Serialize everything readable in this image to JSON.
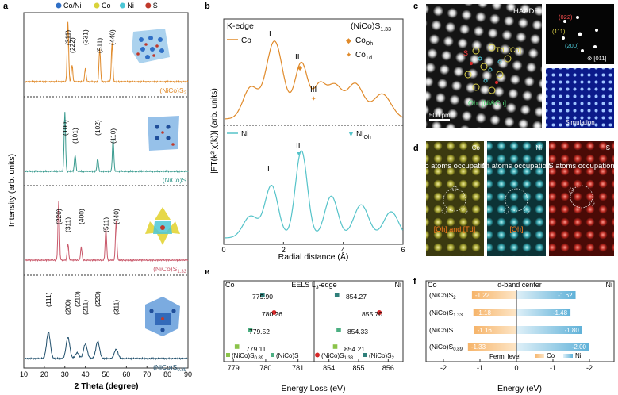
{
  "panel_labels": {
    "a": "a",
    "b": "b",
    "c": "c",
    "d": "d",
    "e": "e",
    "f": "f"
  },
  "colors": {
    "orange": "#e08a2a",
    "teal": "#3a9b8f",
    "pink": "#c9596b",
    "navy": "#1f4e6b",
    "cyan": "#55c3c9",
    "eels_dark": "#2f7f7a",
    "eels_light": "#8bc34a",
    "eels_mid": "#4caf82",
    "red_dot": "#d62828",
    "bar_orange": "#f2a65a",
    "bar_blue": "#6cb7d9",
    "label_yellow": "#e0d64a"
  },
  "legend_a": {
    "items": [
      {
        "label": "Co/Ni",
        "color": "#2f6fc6"
      },
      {
        "label": "Co",
        "color": "#d8d23a"
      },
      {
        "label": "Ni",
        "color": "#4cc7d6"
      },
      {
        "label": "S",
        "color": "#c0392b"
      }
    ]
  },
  "panel_a": {
    "xlabel": "2 Theta (degree)",
    "ylabel": "Intensity (arb. units)",
    "x_ticks": [
      "10",
      "20",
      "30",
      "40",
      "50",
      "60",
      "70",
      "80",
      "90"
    ],
    "subplots": [
      {
        "name": "(NiCo)S2",
        "label": "(NiCo)S",
        "sub": "2",
        "color": "#e08a2a",
        "peaks": [
          {
            "theta": 31.5,
            "label": "(311)"
          },
          {
            "theta": 33.5,
            "label": "(222)"
          },
          {
            "theta": 40.0,
            "label": "(331)"
          },
          {
            "theta": 47.0,
            "label": "(511)"
          },
          {
            "theta": 53.0,
            "label": "(440)"
          }
        ]
      },
      {
        "name": "(NiCo)S",
        "label": "(NiCo)S",
        "sub": "",
        "color": "#3a9b8f",
        "peaks": [
          {
            "theta": 30.0,
            "label": "(100)"
          },
          {
            "theta": 35.0,
            "label": "(101)"
          },
          {
            "theta": 46.0,
            "label": "(102)"
          },
          {
            "theta": 53.5,
            "label": "(110)"
          }
        ]
      },
      {
        "name": "(NiCo)S1.33",
        "label": "(NiCo)S",
        "sub": "1.33",
        "color": "#c9596b",
        "peaks": [
          {
            "theta": 27.0,
            "label": "(220)"
          },
          {
            "theta": 31.5,
            "label": "(311)"
          },
          {
            "theta": 38.0,
            "label": "(400)"
          },
          {
            "theta": 50.0,
            "label": "(511)"
          },
          {
            "theta": 55.0,
            "label": "(440)"
          }
        ]
      },
      {
        "name": "(NiCo)S0.89",
        "label": "(NiCo)S",
        "sub": "0.89",
        "color": "#1f4e6b",
        "peaks": [
          {
            "theta": 22.0,
            "label": "(111)"
          },
          {
            "theta": 31.5,
            "label": "(200)"
          },
          {
            "theta": 36.0,
            "label": "(210)"
          },
          {
            "theta": 40.0,
            "label": "(211)"
          },
          {
            "theta": 46.0,
            "label": "(220)"
          },
          {
            "theta": 55.0,
            "label": "(311)"
          }
        ]
      }
    ]
  },
  "panel_b": {
    "edge_label": "K-edge",
    "material": "(NiCo)S",
    "material_sub": "1.33",
    "ylabel": "|FT(k² χ(k))| (arb. units)",
    "xlabel": "Radial distance (Å)",
    "x_ticks": [
      "0",
      "2",
      "4",
      "6"
    ],
    "top": {
      "series": "Co",
      "marker_labels": [
        {
          "text": "Co",
          "sub": "Oh"
        },
        {
          "text": "Co",
          "sub": "Td"
        }
      ],
      "peak_labels": [
        "I",
        "II",
        "III"
      ]
    },
    "bottom": {
      "series": "Ni",
      "marker_label": {
        "text": "Ni",
        "sub": "Oh"
      },
      "peak_labels": [
        "I",
        "II"
      ]
    }
  },
  "panel_c": {
    "haadf": "HAADF",
    "scale_bar": "500 pm",
    "td_label": "Td. [Co]",
    "oh_label": "Oh. [Ni&Co]",
    "s_label": "S",
    "fft_labels": [
      "(022)",
      "(111)",
      "(200)",
      "[011]"
    ],
    "simulation": "Simulation"
  },
  "panel_d": {
    "tiles": [
      {
        "tag": "Co",
        "caption": "Co atoms occupation",
        "bottom": "[Oh] and [Td]"
      },
      {
        "tag": "Ni",
        "caption": "Ni atoms occupation",
        "bottom": "[Oh]"
      },
      {
        "tag": "S",
        "caption": "S atoms occupation",
        "bottom": ""
      }
    ]
  },
  "panel_e": {
    "title": "EELS L",
    "title_sub": "3",
    "title_tail": "-edge",
    "left_tag": "Co",
    "right_tag": "Ni",
    "xlabel": "Energy Loss (eV)",
    "x_ticks_left": [
      "779",
      "780",
      "781"
    ],
    "x_ticks_right": [
      "854",
      "855",
      "856"
    ],
    "legend": [
      "(NiCo)S",
      "(NiCo)S",
      "(NiCo)S",
      "(NiCo)S"
    ],
    "legend_subs": [
      "0.89",
      "",
      "1.33",
      "2"
    ]
  },
  "chart_data": [
    {
      "type": "scatter",
      "title": "EELS L3-edge",
      "xlabel": "Energy Loss (eV)",
      "series": [
        {
          "name": "(NiCo)S0.89",
          "co": 779.11,
          "ni": 854.21
        },
        {
          "name": "(NiCo)S",
          "co": 779.52,
          "ni": 854.33
        },
        {
          "name": "(NiCo)S1.33",
          "co": 780.26,
          "ni": 855.7
        },
        {
          "name": "(NiCo)S2",
          "co": 779.9,
          "ni": 854.27
        }
      ],
      "value_labels_co": [
        "779.90",
        "780.26",
        "779.52",
        "779.11"
      ],
      "value_labels_ni": [
        "854.27",
        "855.70",
        "854.33",
        "854.21"
      ],
      "xlim_co": [
        778.7,
        781.5
      ],
      "xlim_ni": [
        853.5,
        856.5
      ]
    },
    {
      "type": "bar",
      "title": "d-band center",
      "xlabel": "Energy (eV)",
      "categories": [
        "(NiCo)S2",
        "(NiCo)S1.33",
        "(NiCo)S",
        "(NiCo)S0.89"
      ],
      "category_labels": [
        {
          "t": "(NiCo)S",
          "s": "2"
        },
        {
          "t": "(NiCo)S",
          "s": "1.33"
        },
        {
          "t": "(NiCo)S",
          "s": ""
        },
        {
          "t": "(NiCo)S",
          "s": "0.89"
        }
      ],
      "series": [
        {
          "name": "Co",
          "values": [
            -1.22,
            -1.18,
            -1.16,
            -1.33
          ],
          "labels": [
            "-1.22",
            "-1.18",
            "-1.16",
            "-1.33"
          ]
        },
        {
          "name": "Ni",
          "values": [
            -1.62,
            -1.48,
            -1.8,
            -2.0
          ],
          "labels": [
            "-1.62",
            "-1.48",
            "-1.80",
            "-2.00"
          ]
        }
      ],
      "x_ticks": [
        "-2",
        "-1",
        "0",
        "-1",
        "-2"
      ],
      "left_tag": "Co",
      "right_tag": "Ni",
      "fermi_label": "Fermi level",
      "legend": [
        "Co",
        "Ni"
      ]
    }
  ]
}
